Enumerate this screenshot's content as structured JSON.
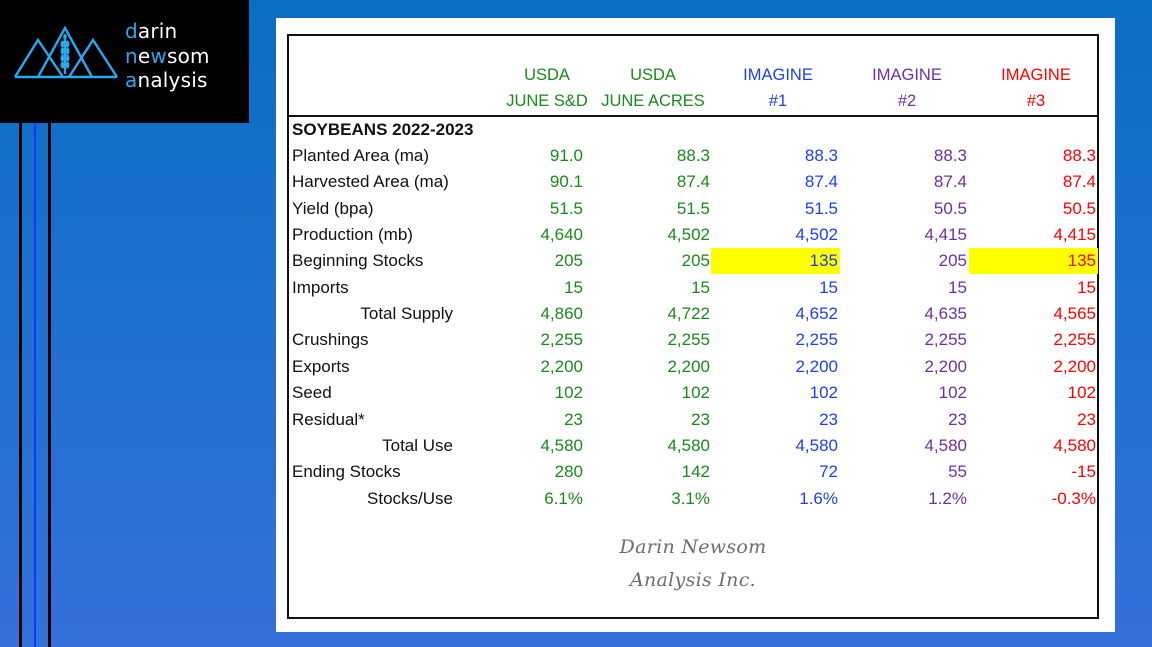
{
  "logo": {
    "line1": {
      "accent": "d",
      "rest": "arin"
    },
    "line2": {
      "a1": "n",
      "p1": "e",
      "a2": "w",
      "p2": "som"
    },
    "line3": {
      "accent": "a",
      "rest": "nalysis"
    },
    "mark": "mountains-wheat-icon"
  },
  "colors": {
    "usda": "#1a8a1a",
    "imagine1": "#1f3ff0",
    "imagine2": "#7030a0",
    "imagine3": "#ff0000",
    "highlight": "#ffff00",
    "logo_accent": "#29a8f0"
  },
  "table": {
    "columns": [
      {
        "line1": "USDA",
        "line2": "JUNE S&D",
        "series": "usda"
      },
      {
        "line1": "USDA",
        "line2": "JUNE ACRES",
        "series": "usda"
      },
      {
        "line1": "IMAGINE",
        "line2": "#1",
        "series": "imagine1"
      },
      {
        "line1": "IMAGINE",
        "line2": "#2",
        "series": "imagine2"
      },
      {
        "line1": "IMAGINE",
        "line2": "#3",
        "series": "imagine3"
      }
    ],
    "section_title": "SOYBEANS 2022-2023",
    "rows": [
      {
        "label": "Planted Area (ma)",
        "style": "",
        "values": [
          "91.0",
          "88.3",
          "88.3",
          "88.3",
          "88.3"
        ],
        "highlight": [
          false,
          false,
          false,
          false,
          false
        ]
      },
      {
        "label": "Harvested Area (ma)",
        "style": "",
        "values": [
          "90.1",
          "87.4",
          "87.4",
          "87.4",
          "87.4"
        ],
        "highlight": [
          false,
          false,
          false,
          false,
          false
        ]
      },
      {
        "label": "Yield (bpa)",
        "style": "",
        "values": [
          "51.5",
          "51.5",
          "51.5",
          "50.5",
          "50.5"
        ],
        "highlight": [
          false,
          false,
          false,
          false,
          false
        ]
      },
      {
        "label": "Production (mb)",
        "style": "",
        "values": [
          "4,640",
          "4,502",
          "4,502",
          "4,415",
          "4,415"
        ],
        "highlight": [
          false,
          false,
          false,
          false,
          false
        ]
      },
      {
        "label": "Beginning Stocks",
        "style": "",
        "values": [
          "205",
          "205",
          "135",
          "205",
          "135"
        ],
        "highlight": [
          false,
          false,
          true,
          false,
          true
        ]
      },
      {
        "label": "Imports",
        "style": "",
        "values": [
          "15",
          "15",
          "15",
          "15",
          "15"
        ],
        "highlight": [
          false,
          false,
          false,
          false,
          false
        ]
      },
      {
        "label": "Total Supply",
        "style": "indent1",
        "values": [
          "4,860",
          "4,722",
          "4,652",
          "4,635",
          "4,565"
        ],
        "highlight": [
          false,
          false,
          false,
          false,
          false
        ]
      },
      {
        "label": "Crushings",
        "style": "",
        "values": [
          "2,255",
          "2,255",
          "2,255",
          "2,255",
          "2,255"
        ],
        "highlight": [
          false,
          false,
          false,
          false,
          false
        ]
      },
      {
        "label": "Exports",
        "style": "",
        "values": [
          "2,200",
          "2,200",
          "2,200",
          "2,200",
          "2,200"
        ],
        "highlight": [
          false,
          false,
          false,
          false,
          false
        ]
      },
      {
        "label": "Seed",
        "style": "",
        "values": [
          "102",
          "102",
          "102",
          "102",
          "102"
        ],
        "highlight": [
          false,
          false,
          false,
          false,
          false
        ]
      },
      {
        "label": "Residual*",
        "style": "",
        "values": [
          "23",
          "23",
          "23",
          "23",
          "23"
        ],
        "highlight": [
          false,
          false,
          false,
          false,
          false
        ]
      },
      {
        "label": "Total Use",
        "style": "indent2",
        "values": [
          "4,580",
          "4,580",
          "4,580",
          "4,580",
          "4,580"
        ],
        "highlight": [
          false,
          false,
          false,
          false,
          false
        ]
      },
      {
        "label": "Ending Stocks",
        "style": "",
        "values": [
          "280",
          "142",
          "72",
          "55",
          "-15"
        ],
        "highlight": [
          false,
          false,
          false,
          false,
          false
        ]
      },
      {
        "label": "Stocks/Use",
        "style": "indent2",
        "values": [
          "6.1%",
          "3.1%",
          "1.6%",
          "1.2%",
          "-0.3%"
        ],
        "highlight": [
          false,
          false,
          false,
          false,
          false
        ]
      }
    ]
  },
  "signature": {
    "line1": "Darin Newsom",
    "line2": "Analysis Inc."
  }
}
